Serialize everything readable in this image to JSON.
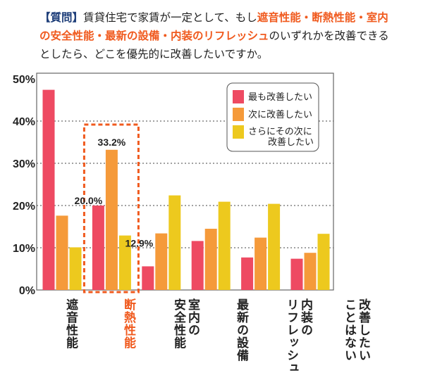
{
  "question": {
    "tag": "【質問】",
    "text1": "賃貸住宅で家賃が一定として、もし",
    "highlight": "遮音性能・断熱性能・室内の安全性能・最新の設備・内装のリフレッシュ",
    "text2": "のいずれかを改善できるとしたら、どこを優先的に改善したいですか。"
  },
  "colors": {
    "first": "#ee4a62",
    "second": "#f59a3a",
    "third": "#edc91e",
    "highlight": "#f05a1e",
    "tag": "#1f3f7a"
  },
  "chart_data": {
    "type": "bar",
    "categories": [
      "遮音性能",
      "断熱性能",
      "室内の\n安全性能",
      "最新の設備",
      "内装の\nリフレッシュ",
      "改善したい\nことはない"
    ],
    "highlighted_category": "断熱性能",
    "series": [
      {
        "name": "最も改善したい",
        "values": [
          47.4,
          20.0,
          5.6,
          11.6,
          7.7,
          7.4
        ]
      },
      {
        "name": "次に改善したい",
        "values": [
          17.6,
          33.2,
          13.4,
          14.5,
          12.4,
          8.8
        ]
      },
      {
        "name": "さらにその次に\n改善したい",
        "values": [
          10.1,
          12.9,
          22.4,
          20.9,
          20.4,
          13.3
        ]
      }
    ],
    "data_labels": {
      "category": "断熱性能",
      "labels": [
        "20.0%",
        "33.2%",
        "12.9%"
      ]
    },
    "yticks": [
      "0%",
      "10%",
      "20%",
      "30%",
      "40%",
      "50%"
    ],
    "ylim": [
      0,
      50
    ],
    "grid": "dotted horizontal",
    "legend": {
      "position": "top-right",
      "entries": [
        "最も改善したい",
        "次に改善したい",
        "さらにその次に",
        "改善したい"
      ]
    }
  }
}
